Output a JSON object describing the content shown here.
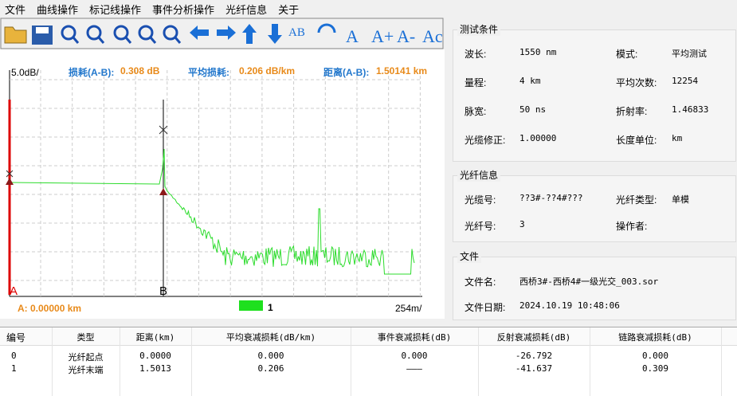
{
  "menu": [
    "文件",
    "曲线操作",
    "标记线操作",
    "事件分析操作",
    "光纤信息",
    "关于"
  ],
  "toolbar": {
    "text_icons": [
      "AB",
      "A",
      "A+",
      "A-",
      "Ac"
    ]
  },
  "graph": {
    "loss_label": "损耗(A-B):",
    "loss_value": "0.308 dB",
    "avg_loss_label": "平均损耗:",
    "avg_loss_value": "0.206 dB/km",
    "distance_label": "距离(A-B):",
    "distance_value": "1.50141 km",
    "y_scale": "5.0dB/",
    "x_scale": "254m/",
    "marker_a": "A",
    "marker_b": "B",
    "cursor": "A: 0.00000 km",
    "legend": "1"
  },
  "test_conditions": {
    "title": "测试条件",
    "fields": [
      [
        "波长:",
        "1550 nm",
        "模式:",
        "平均测试"
      ],
      [
        "量程:",
        "4 km",
        "平均次数:",
        "12254"
      ],
      [
        "脉宽:",
        "50 ns",
        "折射率:",
        "1.46833"
      ],
      [
        "光缆修正:",
        "1.00000",
        "长度单位:",
        "km"
      ]
    ]
  },
  "fiber_info": {
    "title": "光纤信息",
    "fields": [
      [
        "光缆号:",
        "??3#-??4#???",
        "光纤类型:",
        "单模"
      ],
      [
        "光纤号:",
        "3",
        "操作者:"
      ]
    ]
  },
  "file": {
    "title": "文件",
    "fields": [
      [
        "文件名:",
        "西桥3#-西桥4#一级光交_003.sor"
      ],
      [
        "文件日期:",
        "2024.10.19  10:48:06"
      ]
    ]
  },
  "table": {
    "headers": [
      "编号",
      "类型",
      "距离(km)",
      "平均衰减损耗(dB/km)",
      "事件衰减损耗(dB)",
      "反射衰减损耗(dB)",
      "链路衰减损耗(dB)"
    ],
    "rows": [
      [
        "0",
        "光纤起点",
        "0.0000",
        "0.000",
        "0.000",
        "-26.792",
        "0.000"
      ],
      [
        "1",
        "光纤末端",
        "1.5013",
        "0.206",
        "———",
        "-41.637",
        "0.309"
      ]
    ]
  }
}
